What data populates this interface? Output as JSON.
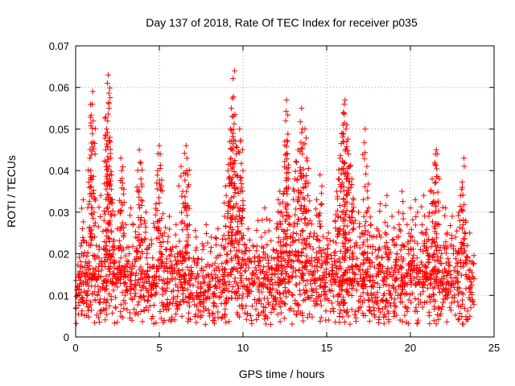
{
  "chart_data": {
    "type": "scatter",
    "title": "Day 137 of 2018, Rate Of TEC Index for receiver p035",
    "xlabel": "GPS time / hours",
    "ylabel": "ROTI / TECUs",
    "xlim": [
      0,
      25
    ],
    "ylim": [
      0,
      0.07
    ],
    "xticks": [
      0,
      5,
      10,
      15,
      20,
      25
    ],
    "xtick_labels": [
      "0",
      "5",
      "10",
      "15",
      "20",
      "25"
    ],
    "yticks": [
      0,
      0.01,
      0.02,
      0.03,
      0.04,
      0.05,
      0.06,
      0.07
    ],
    "ytick_labels": [
      "0",
      "0.01",
      "0.02",
      "0.03",
      "0.04",
      "0.05",
      "0.06",
      "0.07"
    ],
    "grid": true,
    "marker": "+",
    "series": [
      {
        "name": "ROTI",
        "color": "#ff0000",
        "points": [
          [
            0.1,
            0.012
          ],
          [
            0.2,
            0.015
          ],
          [
            0.3,
            0.009
          ],
          [
            0.35,
            0.02
          ],
          [
            0.4,
            0.026
          ],
          [
            0.45,
            0.033
          ],
          [
            0.5,
            0.011
          ],
          [
            0.6,
            0.018
          ],
          [
            0.65,
            0.008
          ],
          [
            0.7,
            0.013
          ],
          [
            0.8,
            0.022
          ],
          [
            0.85,
            0.043
          ],
          [
            0.9,
            0.04
          ],
          [
            0.95,
            0.014
          ],
          [
            1.0,
            0.056
          ],
          [
            1.02,
            0.059
          ],
          [
            1.05,
            0.052
          ],
          [
            1.1,
            0.03
          ],
          [
            1.2,
            0.016
          ],
          [
            1.3,
            0.01
          ],
          [
            1.4,
            0.019
          ],
          [
            1.5,
            0.034
          ],
          [
            1.6,
            0.012
          ],
          [
            1.7,
            0.028
          ],
          [
            1.8,
            0.045
          ],
          [
            1.85,
            0.05
          ],
          [
            1.9,
            0.061
          ],
          [
            1.95,
            0.063
          ],
          [
            2.0,
            0.055
          ],
          [
            2.05,
            0.048
          ],
          [
            2.1,
            0.043
          ],
          [
            2.15,
            0.039
          ],
          [
            2.2,
            0.033
          ],
          [
            2.3,
            0.021
          ],
          [
            2.4,
            0.013
          ],
          [
            2.5,
            0.026
          ],
          [
            2.6,
            0.018
          ],
          [
            2.7,
            0.043
          ],
          [
            2.75,
            0.04
          ],
          [
            2.8,
            0.037
          ],
          [
            2.9,
            0.015
          ],
          [
            3.0,
            0.027
          ],
          [
            3.1,
            0.011
          ],
          [
            3.2,
            0.02
          ],
          [
            3.3,
            0.031
          ],
          [
            3.4,
            0.009
          ],
          [
            3.5,
            0.017
          ],
          [
            3.6,
            0.024
          ],
          [
            3.7,
            0.035
          ],
          [
            3.8,
            0.045
          ],
          [
            3.85,
            0.042
          ],
          [
            3.9,
            0.038
          ],
          [
            4.0,
            0.012
          ],
          [
            4.1,
            0.028
          ],
          [
            4.2,
            0.03
          ],
          [
            4.3,
            0.016
          ],
          [
            4.4,
            0.022
          ],
          [
            4.5,
            0.01
          ],
          [
            4.6,
            0.019
          ],
          [
            4.7,
            0.013
          ],
          [
            4.8,
            0.032
          ],
          [
            4.9,
            0.04
          ],
          [
            5.0,
            0.046
          ],
          [
            5.05,
            0.044
          ],
          [
            5.1,
            0.036
          ],
          [
            5.2,
            0.018
          ],
          [
            5.3,
            0.025
          ],
          [
            5.4,
            0.011
          ],
          [
            5.5,
            0.014
          ],
          [
            5.6,
            0.029
          ],
          [
            5.7,
            0.021
          ],
          [
            5.8,
            0.008
          ],
          [
            5.9,
            0.016
          ],
          [
            6.0,
            0.027
          ],
          [
            6.1,
            0.012
          ],
          [
            6.2,
            0.023
          ],
          [
            6.3,
            0.041
          ],
          [
            6.4,
            0.035
          ],
          [
            6.5,
            0.019
          ],
          [
            6.6,
            0.046
          ],
          [
            6.65,
            0.043
          ],
          [
            6.7,
            0.039
          ],
          [
            6.8,
            0.027
          ],
          [
            6.9,
            0.014
          ],
          [
            7.0,
            0.01
          ],
          [
            7.1,
            0.018
          ],
          [
            7.2,
            0.024
          ],
          [
            7.3,
            0.012
          ],
          [
            7.4,
            0.009
          ],
          [
            7.5,
            0.016
          ],
          [
            7.6,
            0.021
          ],
          [
            7.7,
            0.013
          ],
          [
            7.8,
            0.027
          ],
          [
            7.9,
            0.011
          ],
          [
            8.0,
            0.017
          ],
          [
            8.1,
            0.024
          ],
          [
            8.2,
            0.014
          ],
          [
            8.3,
            0.008
          ],
          [
            8.4,
            0.019
          ],
          [
            8.5,
            0.026
          ],
          [
            8.6,
            0.012
          ],
          [
            8.7,
            0.022
          ],
          [
            8.8,
            0.015
          ],
          [
            8.9,
            0.029
          ],
          [
            9.0,
            0.034
          ],
          [
            9.1,
            0.04
          ],
          [
            9.2,
            0.047
          ],
          [
            9.25,
            0.05
          ],
          [
            9.3,
            0.055
          ],
          [
            9.35,
            0.053
          ],
          [
            9.4,
            0.049
          ],
          [
            9.5,
            0.064
          ],
          [
            9.6,
            0.044
          ],
          [
            9.7,
            0.031
          ],
          [
            9.8,
            0.05
          ],
          [
            9.85,
            0.047
          ],
          [
            9.9,
            0.036
          ],
          [
            10.0,
            0.04
          ],
          [
            10.1,
            0.02
          ],
          [
            10.2,
            0.014
          ],
          [
            10.3,
            0.026
          ],
          [
            10.4,
            0.011
          ],
          [
            10.5,
            0.018
          ],
          [
            10.6,
            0.022
          ],
          [
            10.7,
            0.009
          ],
          [
            10.8,
            0.016
          ],
          [
            10.9,
            0.028
          ],
          [
            11.0,
            0.013
          ],
          [
            11.1,
            0.024
          ],
          [
            11.2,
            0.019
          ],
          [
            11.3,
            0.031
          ],
          [
            11.4,
            0.012
          ],
          [
            11.5,
            0.017
          ],
          [
            11.6,
            0.028
          ],
          [
            11.7,
            0.01
          ],
          [
            11.8,
            0.021
          ],
          [
            11.9,
            0.015
          ],
          [
            12.0,
            0.026
          ],
          [
            12.1,
            0.033
          ],
          [
            12.2,
            0.035
          ],
          [
            12.3,
            0.03
          ],
          [
            12.4,
            0.022
          ],
          [
            12.5,
            0.047
          ],
          [
            12.55,
            0.052
          ],
          [
            12.6,
            0.057
          ],
          [
            12.65,
            0.044
          ],
          [
            12.7,
            0.038
          ],
          [
            12.8,
            0.027
          ],
          [
            12.9,
            0.017
          ],
          [
            13.0,
            0.025
          ],
          [
            13.1,
            0.038
          ],
          [
            13.2,
            0.042
          ],
          [
            13.3,
            0.045
          ],
          [
            13.4,
            0.04
          ],
          [
            13.5,
            0.055
          ],
          [
            13.55,
            0.05
          ],
          [
            13.6,
            0.036
          ],
          [
            13.7,
            0.05
          ],
          [
            13.8,
            0.043
          ],
          [
            13.9,
            0.037
          ],
          [
            14.0,
            0.028
          ],
          [
            14.1,
            0.019
          ],
          [
            14.2,
            0.024
          ],
          [
            14.3,
            0.014
          ],
          [
            14.4,
            0.033
          ],
          [
            14.5,
            0.029
          ],
          [
            14.6,
            0.039
          ],
          [
            14.7,
            0.032
          ],
          [
            14.8,
            0.021
          ],
          [
            14.9,
            0.012
          ],
          [
            15.0,
            0.018
          ],
          [
            15.1,
            0.025
          ],
          [
            15.2,
            0.011
          ],
          [
            15.3,
            0.016
          ],
          [
            15.4,
            0.023
          ],
          [
            15.5,
            0.028
          ],
          [
            15.6,
            0.035
          ],
          [
            15.7,
            0.038
          ],
          [
            15.8,
            0.043
          ],
          [
            15.9,
            0.049
          ],
          [
            16.0,
            0.054
          ],
          [
            16.05,
            0.056
          ],
          [
            16.1,
            0.057
          ],
          [
            16.15,
            0.05
          ],
          [
            16.2,
            0.047
          ],
          [
            16.3,
            0.044
          ],
          [
            16.4,
            0.041
          ],
          [
            16.5,
            0.038
          ],
          [
            16.6,
            0.033
          ],
          [
            16.7,
            0.028
          ],
          [
            16.8,
            0.022
          ],
          [
            16.9,
            0.03
          ],
          [
            17.0,
            0.014
          ],
          [
            17.1,
            0.025
          ],
          [
            17.2,
            0.02
          ],
          [
            17.3,
            0.05
          ],
          [
            17.4,
            0.041
          ],
          [
            17.5,
            0.031
          ],
          [
            17.6,
            0.017
          ],
          [
            17.7,
            0.024
          ],
          [
            17.8,
            0.012
          ],
          [
            17.9,
            0.021
          ],
          [
            18.0,
            0.026
          ],
          [
            18.1,
            0.015
          ],
          [
            18.2,
            0.032
          ],
          [
            18.3,
            0.019
          ],
          [
            18.4,
            0.01
          ],
          [
            18.5,
            0.025
          ],
          [
            18.6,
            0.034
          ],
          [
            18.7,
            0.021
          ],
          [
            18.8,
            0.015
          ],
          [
            18.9,
            0.029
          ],
          [
            19.0,
            0.012
          ],
          [
            19.1,
            0.018
          ],
          [
            19.2,
            0.024
          ],
          [
            19.3,
            0.03
          ],
          [
            19.4,
            0.017
          ],
          [
            19.5,
            0.035
          ],
          [
            19.6,
            0.022
          ],
          [
            19.7,
            0.013
          ],
          [
            19.8,
            0.027
          ],
          [
            19.9,
            0.02
          ],
          [
            20.0,
            0.031
          ],
          [
            20.1,
            0.024
          ],
          [
            20.2,
            0.016
          ],
          [
            20.3,
            0.033
          ],
          [
            20.4,
            0.019
          ],
          [
            20.5,
            0.013
          ],
          [
            20.6,
            0.021
          ],
          [
            20.7,
            0.027
          ],
          [
            20.8,
            0.034
          ],
          [
            20.9,
            0.017
          ],
          [
            21.0,
            0.023
          ],
          [
            21.1,
            0.029
          ],
          [
            21.2,
            0.035
          ],
          [
            21.3,
            0.038
          ],
          [
            21.4,
            0.032
          ],
          [
            21.5,
            0.044
          ],
          [
            21.55,
            0.045
          ],
          [
            21.6,
            0.044
          ],
          [
            21.7,
            0.027
          ],
          [
            21.8,
            0.019
          ],
          [
            21.9,
            0.013
          ],
          [
            22.0,
            0.022
          ],
          [
            22.1,
            0.031
          ],
          [
            22.2,
            0.025
          ],
          [
            22.3,
            0.018
          ],
          [
            22.4,
            0.011
          ],
          [
            22.5,
            0.029
          ],
          [
            22.6,
            0.016
          ],
          [
            22.7,
            0.024
          ],
          [
            22.8,
            0.02
          ],
          [
            22.9,
            0.03
          ],
          [
            23.0,
            0.034
          ],
          [
            23.1,
            0.036
          ],
          [
            23.2,
            0.043
          ],
          [
            23.3,
            0.028
          ],
          [
            23.4,
            0.022
          ],
          [
            23.5,
            0.016
          ],
          [
            23.6,
            0.012
          ],
          [
            23.7,
            0.018
          ],
          [
            23.8,
            0.014
          ]
        ],
        "background_band": {
          "x_range": [
            0,
            23.8
          ],
          "y_center": 0.011,
          "y_spread": 0.004
        }
      }
    ]
  }
}
